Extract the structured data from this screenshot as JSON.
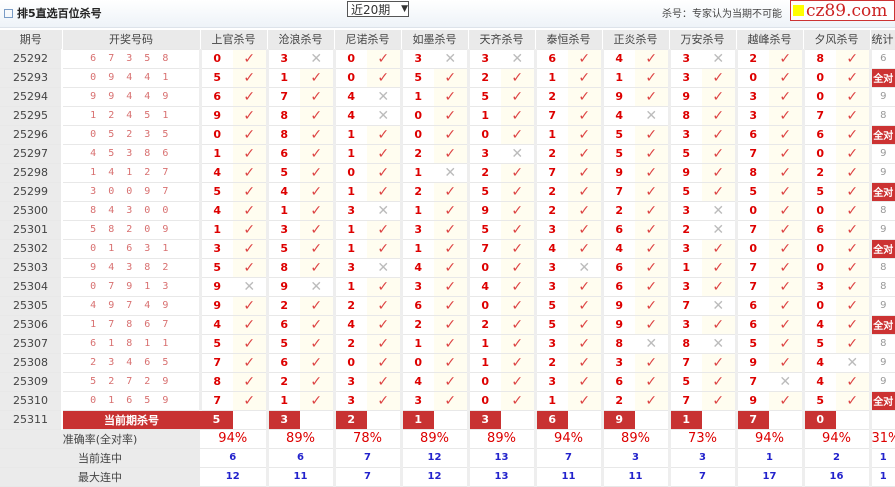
{
  "header": {
    "title": "排5直选百位杀号",
    "period_select": "近20期",
    "note": "杀号：专家认为当期不可能",
    "logo_text": "cz89.com"
  },
  "columns": {
    "period": "期号",
    "draw": "开奖号码",
    "experts": [
      "上官杀号",
      "沧浪杀号",
      "尼诺杀号",
      "如墨杀号",
      "天齐杀号",
      "泰恒杀号",
      "正炎杀号",
      "万安杀号",
      "越峰杀号",
      "夕风杀号"
    ],
    "stat": "统计"
  },
  "rows": [
    {
      "period": "25292",
      "draw": "6 7 3 5 8",
      "kills": [
        "0",
        "3",
        "0",
        "3",
        "3",
        "6",
        "4",
        "3",
        "2",
        "8"
      ],
      "stat": "6"
    },
    {
      "period": "25293",
      "draw": "0 9 4 4 1",
      "kills": [
        "5",
        "1",
        "0",
        "5",
        "2",
        "1",
        "1",
        "3",
        "0",
        "0"
      ],
      "stat": "全对"
    },
    {
      "period": "25294",
      "draw": "9 9 4 4 9",
      "kills": [
        "6",
        "7",
        "4",
        "1",
        "5",
        "2",
        "9",
        "9",
        "3",
        "0"
      ],
      "stat": "9"
    },
    {
      "period": "25295",
      "draw": "1 2 4 5 1",
      "kills": [
        "9",
        "8",
        "4",
        "0",
        "1",
        "7",
        "4",
        "8",
        "3",
        "7"
      ],
      "stat": "8"
    },
    {
      "period": "25296",
      "draw": "0 5 2 3 5",
      "kills": [
        "0",
        "8",
        "1",
        "0",
        "0",
        "1",
        "5",
        "3",
        "6",
        "6"
      ],
      "stat": "全对"
    },
    {
      "period": "25297",
      "draw": "4 5 3 8 6",
      "kills": [
        "1",
        "6",
        "1",
        "2",
        "3",
        "2",
        "5",
        "5",
        "7",
        "0"
      ],
      "stat": "9"
    },
    {
      "period": "25298",
      "draw": "1 4 1 2 7",
      "kills": [
        "4",
        "5",
        "0",
        "1",
        "2",
        "7",
        "9",
        "9",
        "8",
        "2"
      ],
      "stat": "9"
    },
    {
      "period": "25299",
      "draw": "3 0 0 9 7",
      "kills": [
        "5",
        "4",
        "1",
        "2",
        "5",
        "2",
        "7",
        "5",
        "5",
        "5"
      ],
      "stat": "全对"
    },
    {
      "period": "25300",
      "draw": "8 4 3 0 0",
      "kills": [
        "4",
        "1",
        "3",
        "1",
        "9",
        "2",
        "2",
        "3",
        "0",
        "0"
      ],
      "stat": "8"
    },
    {
      "period": "25301",
      "draw": "5 8 2 0 9",
      "kills": [
        "1",
        "3",
        "1",
        "3",
        "5",
        "3",
        "6",
        "2",
        "7",
        "6"
      ],
      "stat": "9"
    },
    {
      "period": "25302",
      "draw": "0 1 6 3 1",
      "kills": [
        "3",
        "5",
        "1",
        "1",
        "7",
        "4",
        "4",
        "3",
        "0",
        "0"
      ],
      "stat": "全对"
    },
    {
      "period": "25303",
      "draw": "9 4 3 8 2",
      "kills": [
        "5",
        "8",
        "3",
        "4",
        "0",
        "3",
        "6",
        "1",
        "7",
        "0"
      ],
      "stat": "8"
    },
    {
      "period": "25304",
      "draw": "0 7 9 1 3",
      "kills": [
        "9",
        "9",
        "1",
        "3",
        "4",
        "3",
        "6",
        "3",
        "7",
        "3"
      ],
      "stat": "8"
    },
    {
      "period": "25305",
      "draw": "4 9 7 4 9",
      "kills": [
        "9",
        "2",
        "2",
        "6",
        "0",
        "5",
        "9",
        "7",
        "6",
        "0"
      ],
      "stat": "9"
    },
    {
      "period": "25306",
      "draw": "1 7 8 6 7",
      "kills": [
        "4",
        "6",
        "4",
        "2",
        "2",
        "5",
        "9",
        "3",
        "6",
        "4"
      ],
      "stat": "全对"
    },
    {
      "period": "25307",
      "draw": "6 1 8 1 1",
      "kills": [
        "5",
        "5",
        "2",
        "1",
        "1",
        "3",
        "8",
        "8",
        "5",
        "5"
      ],
      "stat": "8"
    },
    {
      "period": "25308",
      "draw": "2 3 4 6 5",
      "kills": [
        "7",
        "6",
        "0",
        "0",
        "1",
        "2",
        "3",
        "7",
        "9",
        "4"
      ],
      "stat": "9"
    },
    {
      "period": "25309",
      "draw": "5 2 7 2 9",
      "kills": [
        "8",
        "2",
        "3",
        "4",
        "0",
        "3",
        "6",
        "5",
        "7",
        "4"
      ],
      "stat": "9"
    },
    {
      "period": "25310",
      "draw": "0 1 6 5 9",
      "kills": [
        "7",
        "1",
        "3",
        "3",
        "0",
        "1",
        "2",
        "7",
        "9",
        "5"
      ],
      "stat": "全对"
    }
  ],
  "current": {
    "period": "25311",
    "label": "当前期杀号",
    "kills": [
      "5",
      "3",
      "2",
      "1",
      "3",
      "6",
      "9",
      "1",
      "7",
      "0"
    ]
  },
  "summary": {
    "accuracy_label": "准确率(全对率)",
    "accuracy": [
      "94%",
      "89%",
      "78%",
      "89%",
      "89%",
      "94%",
      "89%",
      "73%",
      "94%",
      "94%",
      "31%"
    ],
    "streak_label": "当前连中",
    "streak": [
      "6",
      "6",
      "7",
      "12",
      "13",
      "7",
      "3",
      "3",
      "1",
      "2",
      "1"
    ],
    "max_label": "最大连中",
    "max": [
      "12",
      "11",
      "7",
      "12",
      "13",
      "11",
      "11",
      "7",
      "17",
      "16",
      "1"
    ]
  },
  "icons": {
    "hit": "check-icon",
    "miss": "cross-icon"
  },
  "colors": {
    "accent": "#c83232",
    "kill": "#dd0000",
    "streak": "#2222cc"
  }
}
